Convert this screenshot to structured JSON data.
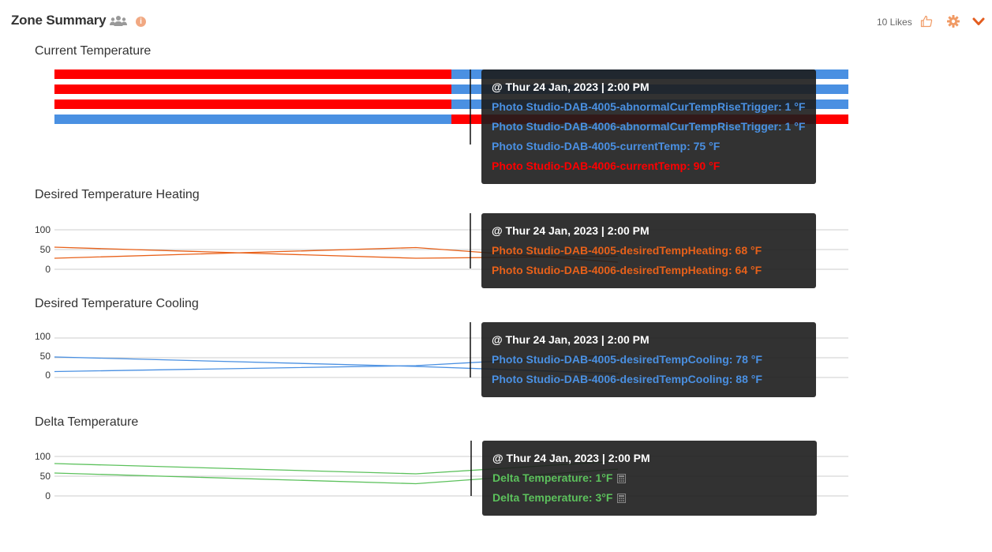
{
  "header": {
    "title": "Zone Summary",
    "likes": "10 Likes",
    "icons": [
      "group-icon",
      "info-icon",
      "thumbs-up-icon",
      "gear-icon",
      "chevron-down-icon"
    ],
    "accent_color": "#f09a64"
  },
  "colors": {
    "red": "#ff0000",
    "blue": "#4a90e2",
    "orange": "#e8611a",
    "green": "#5cc15c",
    "grid": "#cccccc"
  },
  "charts": {
    "current": {
      "title": "Current Temperature",
      "tooltip": {
        "timestamp": "@ Thur 24 Jan, 2023 | 2:00 PM",
        "lines": [
          {
            "text": "Photo Studio-DAB-4005-abnormalCurTempRiseTrigger: 1 °F",
            "color": "#4a90e2"
          },
          {
            "text": "Photo Studio-DAB-4006-abnormalCurTempRiseTrigger: 1 °F",
            "color": "#4a90e2"
          },
          {
            "text": "Photo Studio-DAB-4005-currentTemp: 75 °F",
            "color": "#4a90e2"
          },
          {
            "text": "Photo Studio-DAB-4006-currentTemp: 90 °F",
            "color": "#ff0000"
          }
        ]
      }
    },
    "heating": {
      "title": "Desired Temperature Heating",
      "tooltip": {
        "timestamp": "@ Thur 24 Jan, 2023 | 2:00 PM",
        "lines": [
          {
            "text": "Photo Studio-DAB-4005-desiredTempHeating: 68 °F",
            "color": "#e8611a"
          },
          {
            "text": "Photo Studio-DAB-4006-desiredTempHeating: 64 °F",
            "color": "#e8611a"
          }
        ]
      }
    },
    "cooling": {
      "title": "Desired Temperature Cooling",
      "tooltip": {
        "timestamp": "@ Thur 24 Jan, 2023 | 2:00 PM",
        "lines": [
          {
            "text": "Photo Studio-DAB-4005-desiredTempCooling: 78 °F",
            "color": "#4a90e2"
          },
          {
            "text": "Photo Studio-DAB-4006-desiredTempCooling: 88 °F",
            "color": "#4a90e2"
          }
        ]
      }
    },
    "delta": {
      "title": "Delta Temperature",
      "tooltip": {
        "timestamp": "@ Thur 24 Jan, 2023 | 2:00 PM",
        "lines": [
          {
            "text": "Delta Temperature: 1°F",
            "color": "#5cc15c"
          },
          {
            "text": "Delta Temperature: 3°F",
            "color": "#5cc15c"
          }
        ]
      }
    }
  },
  "chart_data": [
    {
      "type": "bar",
      "title": "Current Temperature",
      "x": [
        0,
        0.5,
        1
      ],
      "series": [
        {
          "name": "Photo Studio-DAB-4005-abnormalCurTempRiseTrigger",
          "segments": [
            {
              "from": 0,
              "to": 0.5,
              "color": "#ff0000"
            },
            {
              "from": 0.5,
              "to": 1,
              "color": "#4a90e2"
            }
          ]
        },
        {
          "name": "Photo Studio-DAB-4006-abnormalCurTempRiseTrigger",
          "segments": [
            {
              "from": 0,
              "to": 0.5,
              "color": "#ff0000"
            },
            {
              "from": 0.5,
              "to": 1,
              "color": "#4a90e2"
            }
          ]
        },
        {
          "name": "Photo Studio-DAB-4005-currentTemp",
          "segments": [
            {
              "from": 0,
              "to": 0.5,
              "color": "#ff0000"
            },
            {
              "from": 0.5,
              "to": 1,
              "color": "#4a90e2"
            }
          ]
        },
        {
          "name": "Photo Studio-DAB-4006-currentTemp",
          "segments": [
            {
              "from": 0,
              "to": 0.5,
              "color": "#4a90e2"
            },
            {
              "from": 0.5,
              "to": 1,
              "color": "#ff0000"
            }
          ]
        }
      ]
    },
    {
      "type": "line",
      "title": "Desired Temperature Heating",
      "yticks": [
        0,
        50,
        100
      ],
      "ylim": [
        0,
        100
      ],
      "series": [
        {
          "name": "Photo Studio-DAB-4005-desiredTempHeating",
          "color": "#e8611a",
          "x": [
            0,
            0.45,
            0.71
          ],
          "y": [
            56,
            28,
            33
          ]
        },
        {
          "name": "Photo Studio-DAB-4006-desiredTempHeating",
          "color": "#e8611a",
          "x": [
            0,
            0.45,
            0.71
          ],
          "y": [
            28,
            55,
            18
          ]
        }
      ]
    },
    {
      "type": "line",
      "title": "Desired Temperature Cooling",
      "yticks": [
        0,
        50,
        100
      ],
      "ylim": [
        0,
        100
      ],
      "series": [
        {
          "name": "Photo Studio-DAB-4005-desiredTempCooling",
          "color": "#4a90e2",
          "x": [
            0,
            0.45,
            0.71
          ],
          "y": [
            52,
            28,
            10
          ]
        },
        {
          "name": "Photo Studio-DAB-4006-desiredTempCooling",
          "color": "#4a90e2",
          "x": [
            0,
            0.45,
            0.71
          ],
          "y": [
            15,
            30,
            58
          ]
        }
      ]
    },
    {
      "type": "line",
      "title": "Delta Temperature",
      "yticks": [
        0,
        50,
        100
      ],
      "ylim": [
        0,
        100
      ],
      "series": [
        {
          "name": "Delta Temperature",
          "color": "#5cc15c",
          "x": [
            0,
            0.45,
            0.71
          ],
          "y": [
            82,
            56,
            88
          ]
        },
        {
          "name": "Delta Temperature",
          "color": "#5cc15c",
          "x": [
            0,
            0.45,
            0.71
          ],
          "y": [
            58,
            31,
            68
          ]
        }
      ]
    }
  ]
}
